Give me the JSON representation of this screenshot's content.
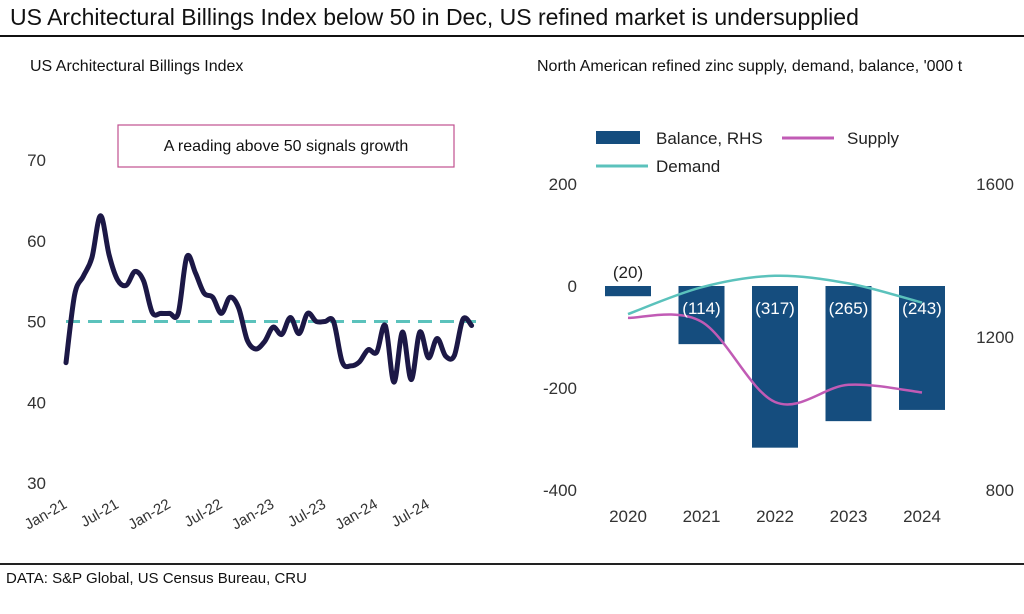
{
  "header": {
    "title": "US Architectural Billings Index below 50 in Dec, US refined market is undersupplied"
  },
  "footer": {
    "source": "DATA: S&P Global, US Census Bureau, CRU"
  },
  "colors": {
    "abi_line": "#1c1846",
    "threshold_line": "#5bc2bc",
    "annotation_border": "#c0508f",
    "balance_bar": "#154d7e",
    "supply_line": "#c15bb5",
    "demand_line": "#5bc2bc"
  },
  "chart_data": [
    {
      "type": "line",
      "title": "US Architectural Billings Index",
      "annotation": "A reading above 50 signals growth",
      "ylim": [
        30,
        70
      ],
      "yticks": [
        "30",
        "40",
        "50",
        "60",
        "70"
      ],
      "xticks": [
        "Jan-21",
        "Jul-21",
        "Jan-22",
        "Jul-22",
        "Jan-23",
        "Jul-23",
        "Jan-24",
        "Jul-24"
      ],
      "threshold": 50,
      "grid": false,
      "x": [
        "Jan-21",
        "Feb-21",
        "Mar-21",
        "Apr-21",
        "May-21",
        "Jun-21",
        "Jul-21",
        "Aug-21",
        "Sep-21",
        "Oct-21",
        "Nov-21",
        "Dec-21",
        "Jan-22",
        "Feb-22",
        "Mar-22",
        "Apr-22",
        "May-22",
        "Jun-22",
        "Jul-22",
        "Aug-22",
        "Sep-22",
        "Oct-22",
        "Nov-22",
        "Dec-22",
        "Jan-23",
        "Feb-23",
        "Mar-23",
        "Apr-23",
        "May-23",
        "Jun-23",
        "Jul-23",
        "Aug-23",
        "Sep-23",
        "Oct-23",
        "Nov-23",
        "Dec-23",
        "Jan-24",
        "Feb-24",
        "Mar-24",
        "Apr-24",
        "May-24",
        "Jun-24",
        "Jul-24",
        "Aug-24",
        "Sep-24",
        "Oct-24",
        "Nov-24",
        "Dec-24"
      ],
      "series": [
        {
          "values": [
            44.9,
            53.3,
            55.6,
            57.9,
            63.1,
            58.2,
            55.1,
            54.5,
            56.2,
            55.0,
            51.1,
            51.0,
            51.0,
            51.0,
            58.0,
            56.0,
            53.5,
            53.0,
            51.0,
            53.0,
            51.7,
            47.7,
            46.6,
            47.5,
            49.3,
            48.4,
            50.5,
            48.5,
            51.0,
            50.0,
            50.0,
            50.0,
            45.0,
            44.5,
            45.0,
            46.5,
            46.2,
            49.5,
            42.5,
            48.7,
            42.8,
            48.7,
            45.5,
            47.9,
            45.7,
            45.8,
            50.3,
            49.5
          ]
        }
      ]
    },
    {
      "type": "bar",
      "title": "North American refined zinc supply, demand, balance, '000 t",
      "categories": [
        "2020",
        "2021",
        "2022",
        "2023",
        "2024"
      ],
      "grid": false,
      "legend": "top",
      "y_left": {
        "ylim": [
          -400,
          200
        ],
        "ticks": [
          "-400",
          "-200",
          "0",
          "200"
        ]
      },
      "y_right": {
        "ylim": [
          800,
          1600
        ],
        "ticks": [
          "800",
          "1200",
          "1600"
        ]
      },
      "series": [
        {
          "name": "Balance, RHS",
          "type": "bar",
          "axis": "left",
          "values": [
            -20,
            -114,
            -317,
            -265,
            -243
          ],
          "labels": [
            "(20)",
            "(114)",
            "(317)",
            "(265)",
            "(243)"
          ]
        },
        {
          "name": "Supply",
          "type": "line",
          "axis": "right",
          "values": [
            1250,
            1240,
            1030,
            1075,
            1055
          ]
        },
        {
          "name": "Demand",
          "type": "line",
          "axis": "right",
          "values": [
            1260,
            1330,
            1360,
            1340,
            1290
          ]
        }
      ]
    }
  ]
}
